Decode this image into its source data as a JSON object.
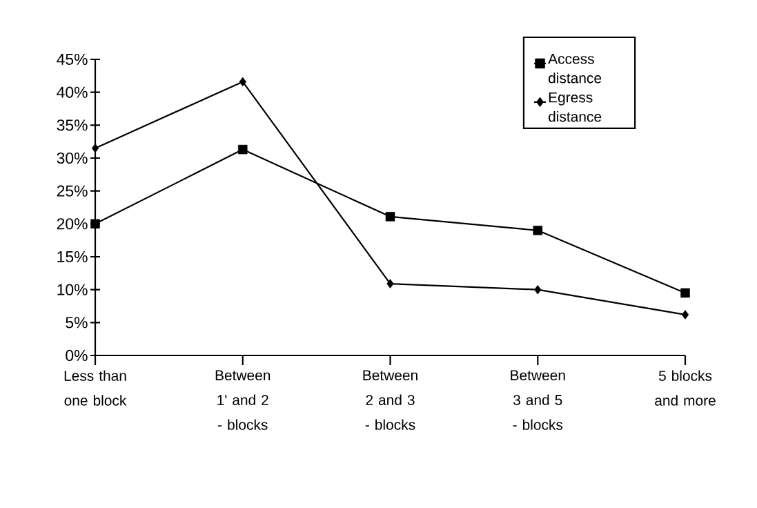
{
  "chart_data": {
    "type": "line",
    "categories": [
      "Less than one block",
      "Between 1' and 2 - blocks",
      "Between 2 and 3 - blocks",
      "Between 3 and 5 - blocks",
      "5 blocks and more"
    ],
    "series": [
      {
        "name": "Access distance",
        "color": "#000000",
        "marker": "square",
        "values": [
          20,
          31.3,
          21.1,
          19,
          9.5
        ]
      },
      {
        "name": "Egress distance",
        "color": "#000000",
        "marker": "diamond",
        "values": [
          31.5,
          41.6,
          10.9,
          10,
          6.2
        ]
      }
    ],
    "ylim": [
      0,
      45
    ],
    "yticks": [
      {
        "value": 0,
        "label": "0%"
      },
      {
        "value": 5,
        "label": "5%"
      },
      {
        "value": 10,
        "label": "10%"
      },
      {
        "value": 15,
        "label": "15%"
      },
      {
        "value": 20,
        "label": "20%"
      },
      {
        "value": 25,
        "label": "25%"
      },
      {
        "value": 30,
        "label": "30%"
      },
      {
        "value": 35,
        "label": "35%"
      },
      {
        "value": 40,
        "label": "40%"
      },
      {
        "value": 45,
        "label": "45%"
      }
    ],
    "grid": false,
    "legend": "top right",
    "line_style": "solid"
  }
}
